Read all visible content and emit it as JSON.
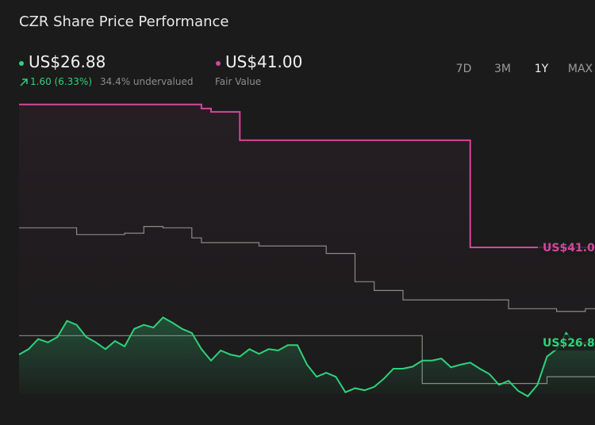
{
  "header": {
    "title": "CZR Share Price Performance",
    "price": "US$26.88",
    "change": "1.60 (6.33%)",
    "valuation": "34.4% undervalued",
    "fair_value": "US$41.00",
    "fair_value_label": "Fair Value",
    "ranges": [
      "7D",
      "3M",
      "1Y",
      "MAX"
    ],
    "selected_range": 2
  },
  "chart_data": {
    "type": "line",
    "ylim": [
      17.7,
      63
    ],
    "series": [
      {
        "color": "#d1489b",
        "step": true,
        "label_path": "header.fair_value",
        "values": [
          62.2,
          62.2,
          62.2,
          62.2,
          62.2,
          62.2,
          62.2,
          62.2,
          62.2,
          62.2,
          62.2,
          62.2,
          62.2,
          62.2,
          62.2,
          62.2,
          62.2,
          62.2,
          62.2,
          61.6,
          61.1,
          61.1,
          61.1,
          56.9,
          56.9,
          56.9,
          56.9,
          56.9,
          56.9,
          56.9,
          56.9,
          56.9,
          56.9,
          56.9,
          56.9,
          56.9,
          56.9,
          56.9,
          56.9,
          56.9,
          56.9,
          56.9,
          56.9,
          56.9,
          56.9,
          56.9,
          56.9,
          41.0,
          41.0,
          41.0,
          41.0,
          41.0,
          41.0,
          41.0,
          41.0,
          41.0,
          41.0,
          41.0,
          41.0,
          41.0,
          41.0
        ]
      },
      {
        "color": "#8a8a84",
        "step": true,
        "values": [
          43.9,
          43.9,
          43.9,
          43.9,
          43.9,
          43.9,
          42.9,
          42.9,
          42.9,
          42.9,
          42.9,
          43.1,
          43.1,
          44.1,
          44.1,
          43.9,
          43.9,
          43.9,
          42.4,
          41.7,
          41.7,
          41.7,
          41.7,
          41.7,
          41.7,
          41.2,
          41.2,
          41.2,
          41.2,
          41.2,
          41.2,
          41.2,
          40.1,
          40.1,
          40.1,
          35.9,
          35.9,
          34.6,
          34.6,
          34.6,
          33.2,
          33.2,
          33.2,
          33.2,
          33.2,
          33.2,
          33.2,
          33.2,
          33.2,
          33.2,
          33.2,
          31.9,
          31.9,
          31.9,
          31.9,
          31.9,
          31.5,
          31.5,
          31.5,
          31.9,
          31.9
        ]
      },
      {
        "color": "#8a8a84",
        "step": true,
        "values": [
          27.9,
          27.9,
          27.9,
          27.9,
          27.9,
          27.9,
          27.9,
          27.9,
          27.9,
          27.9,
          27.9,
          27.9,
          27.9,
          27.9,
          27.9,
          27.9,
          27.9,
          27.9,
          27.9,
          27.9,
          27.9,
          27.9,
          27.9,
          27.9,
          27.9,
          27.9,
          27.9,
          27.9,
          27.9,
          27.9,
          27.9,
          27.9,
          27.9,
          27.9,
          27.9,
          27.9,
          27.9,
          27.9,
          27.9,
          27.9,
          27.9,
          27.9,
          20.8,
          20.8,
          20.8,
          20.8,
          20.8,
          20.8,
          20.8,
          20.8,
          20.8,
          20.8,
          20.8,
          20.8,
          20.8,
          21.8,
          21.8,
          21.8,
          21.8,
          21.8,
          21.8
        ]
      },
      {
        "color": "#2fd17b",
        "step": false,
        "area": true,
        "label_path": "header.price",
        "values": [
          25.1,
          25.9,
          27.4,
          26.9,
          27.7,
          30.1,
          29.5,
          27.7,
          26.9,
          25.9,
          27.1,
          26.3,
          28.9,
          29.5,
          29.1,
          30.6,
          29.8,
          28.9,
          28.3,
          25.9,
          24.2,
          25.7,
          25.1,
          24.8,
          25.9,
          25.2,
          25.9,
          25.7,
          26.5,
          26.5,
          23.6,
          21.8,
          22.4,
          21.8,
          19.5,
          20.1,
          19.8,
          20.3,
          21.5,
          23.0,
          23.0,
          23.3,
          24.2,
          24.2,
          24.5,
          23.2,
          23.6,
          23.9,
          23.0,
          22.2,
          20.6,
          21.2,
          19.7,
          18.9,
          20.6,
          24.8,
          25.9,
          28.3,
          26.5,
          26.9,
          26.88
        ]
      }
    ]
  }
}
